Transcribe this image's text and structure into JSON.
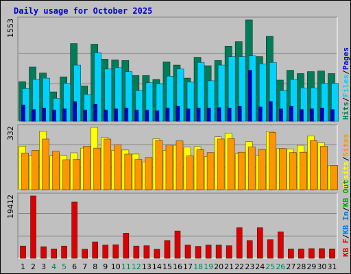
{
  "chart_data": {
    "type": "bar",
    "title": "Daily usage for October 2025",
    "categories": [
      "1",
      "2",
      "3",
      "4",
      "5",
      "6",
      "7",
      "8",
      "9",
      "10",
      "11",
      "12",
      "13",
      "14",
      "15",
      "16",
      "17",
      "18",
      "19",
      "20",
      "21",
      "22",
      "23",
      "24",
      "25",
      "26",
      "27",
      "28",
      "29",
      "30",
      "31"
    ],
    "weekend_days": [
      "4",
      "5",
      "11",
      "12",
      "18",
      "19",
      "25",
      "26"
    ],
    "colors": {
      "background": "#c0c0c0",
      "hits": "#007d58",
      "files": "#00d2ff",
      "pages": "#0000d0",
      "visits": "#ffff00",
      "sites": "#ff9600",
      "kbf": "#dd0000",
      "kbin": "#0078e0",
      "kbout": "#00a000",
      "title": "#0000cc",
      "weekend": "#00805a",
      "weekday": "#000000"
    },
    "panels": [
      {
        "id": "top",
        "ymax_label": "1553",
        "ylim": [
          0,
          1553
        ],
        "legend": [
          {
            "text": "Hits",
            "color": "#007d58"
          },
          {
            "text": "Files",
            "color": "#00d2ff"
          },
          {
            "text": "Pages",
            "color": "#0000d0"
          }
        ],
        "series": [
          {
            "name": "Hits",
            "values": [
              606,
              830,
              740,
              450,
              680,
              1190,
              540,
              1180,
              950,
              940,
              930,
              700,
              700,
              640,
              910,
              860,
              660,
              980,
              850,
              930,
              1150,
              1220,
              1553,
              990,
              1300,
              630,
              780,
              730,
              760,
              770,
              730
            ]
          },
          {
            "name": "Files",
            "values": [
              500,
              640,
              660,
              350,
              580,
              860,
              410,
              1050,
              800,
              820,
              760,
              470,
              590,
              570,
              690,
              800,
              600,
              900,
              620,
              860,
              990,
              990,
              1000,
              880,
              900,
              470,
              640,
              510,
              510,
              580,
              580
            ]
          },
          {
            "name": "Pages",
            "values": [
              250,
              180,
              200,
              170,
              190,
              300,
              170,
              260,
              170,
              190,
              200,
              170,
              170,
              160,
              200,
              230,
              190,
              200,
              200,
              210,
              200,
              230,
              780,
              220,
              300,
              190,
              230,
              180,
              190,
              200,
              180
            ]
          }
        ]
      },
      {
        "id": "middle",
        "ymax_label": "332",
        "ylim": [
          0,
          332
        ],
        "legend": [
          {
            "text": "Visits",
            "color": "#ffff00"
          },
          {
            "text": "Sites",
            "color": "#ff9600"
          }
        ],
        "series": [
          {
            "name": "Visits",
            "values": [
              232,
              180,
              312,
              180,
              182,
              197,
              222,
              332,
              280,
              210,
              212,
              190,
              148,
              272,
              210,
              237,
              227,
              230,
              177,
              282,
              302,
              193,
              257,
              182,
              312,
              220,
              217,
              237,
              287,
              250,
              128
            ]
          },
          {
            "name": "Sites",
            "values": [
              196,
              210,
              270,
              205,
              160,
              162,
              232,
              222,
              270,
              240,
              190,
              162,
              172,
              262,
              238,
              260,
              180,
              213,
              198,
              270,
              272,
              200,
              228,
              215,
              305,
              220,
              198,
              200,
              262,
              232,
              130
            ]
          }
        ]
      },
      {
        "id": "bottom",
        "ymax_label": "19412",
        "ylim": [
          0,
          19412
        ],
        "legend": [
          {
            "text": "KB F",
            "color": "#dd0000"
          },
          {
            "text": "KB In",
            "color": "#0078e0"
          },
          {
            "text": "KB Out",
            "color": "#00a000"
          }
        ],
        "series": [
          {
            "name": "KB F",
            "values": [
              3800,
              19412,
              3600,
              2900,
              3800,
              17500,
              2800,
              5100,
              4100,
              4200,
              7800,
              3800,
              3900,
              2800,
              5500,
              8500,
              4100,
              3700,
              4100,
              4100,
              3900,
              9500,
              5500,
              9500,
              5800,
              8200,
              2900,
              2900,
              3000,
              3000,
              2900
            ]
          }
        ]
      }
    ]
  }
}
